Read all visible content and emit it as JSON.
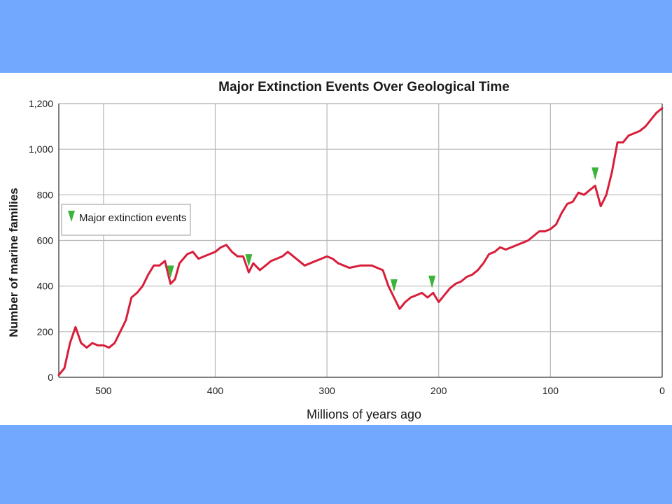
{
  "chart_data": {
    "type": "line",
    "title": "Major Extinction Events Over Geological Time",
    "xlabel": "Millions of years ago",
    "ylabel": "Number of marine families",
    "xlim": [
      540,
      0
    ],
    "ylim": [
      0,
      1200
    ],
    "x_reversed": true,
    "x_ticks": [
      500,
      400,
      300,
      200,
      100,
      0
    ],
    "y_ticks": [
      0,
      200,
      400,
      600,
      800,
      1000,
      1200
    ],
    "x_tick_labels": [
      "500",
      "400",
      "300",
      "200",
      "100",
      "0"
    ],
    "y_tick_labels": [
      "0",
      "200",
      "400",
      "600",
      "800",
      "1,000",
      "1,200"
    ],
    "grid": true,
    "legend": {
      "placement": "upper-left",
      "label": "Major extinction events"
    },
    "colors": {
      "line": "#d81e3a",
      "marker": "#3cb43c",
      "grid": "#b8b8b8",
      "background": "#73a8ff"
    },
    "series": [
      {
        "x": [
          540,
          535,
          530,
          525,
          520,
          515,
          510,
          505,
          500,
          495,
          490,
          485,
          480,
          475,
          470,
          465,
          460,
          455,
          450,
          445,
          440,
          436,
          432,
          425,
          420,
          415,
          410,
          405,
          400,
          395,
          390,
          385,
          380,
          375,
          370,
          366,
          360,
          350,
          345,
          340,
          335,
          330,
          320,
          310,
          305,
          300,
          295,
          290,
          285,
          280,
          270,
          260,
          255,
          250,
          245,
          240,
          235,
          230,
          225,
          220,
          215,
          210,
          205,
          200,
          195,
          190,
          185,
          180,
          175,
          170,
          165,
          160,
          155,
          150,
          145,
          140,
          135,
          130,
          125,
          120,
          115,
          110,
          105,
          100,
          95,
          90,
          85,
          80,
          75,
          70,
          65,
          60,
          55,
          50,
          45,
          40,
          35,
          30,
          25,
          20,
          15,
          10,
          5,
          0
        ],
        "y": [
          10,
          40,
          150,
          220,
          150,
          130,
          150,
          140,
          140,
          130,
          150,
          200,
          250,
          350,
          370,
          400,
          450,
          490,
          490,
          510,
          410,
          430,
          500,
          540,
          550,
          520,
          530,
          540,
          550,
          570,
          580,
          550,
          530,
          530,
          460,
          500,
          470,
          510,
          520,
          530,
          550,
          530,
          490,
          510,
          520,
          530,
          520,
          500,
          490,
          480,
          490,
          490,
          480,
          470,
          400,
          350,
          300,
          330,
          350,
          360,
          370,
          350,
          370,
          330,
          360,
          390,
          410,
          420,
          440,
          450,
          470,
          500,
          540,
          550,
          570,
          560,
          570,
          580,
          590,
          600,
          620,
          640,
          640,
          650,
          670,
          720,
          760,
          770,
          810,
          800,
          820,
          840,
          750,
          800,
          900,
          1030,
          1030,
          1060,
          1070,
          1080,
          1100,
          1130,
          1160,
          1180
        ]
      }
    ],
    "extinction_events": [
      440,
      370,
      240,
      206,
      60
    ]
  }
}
